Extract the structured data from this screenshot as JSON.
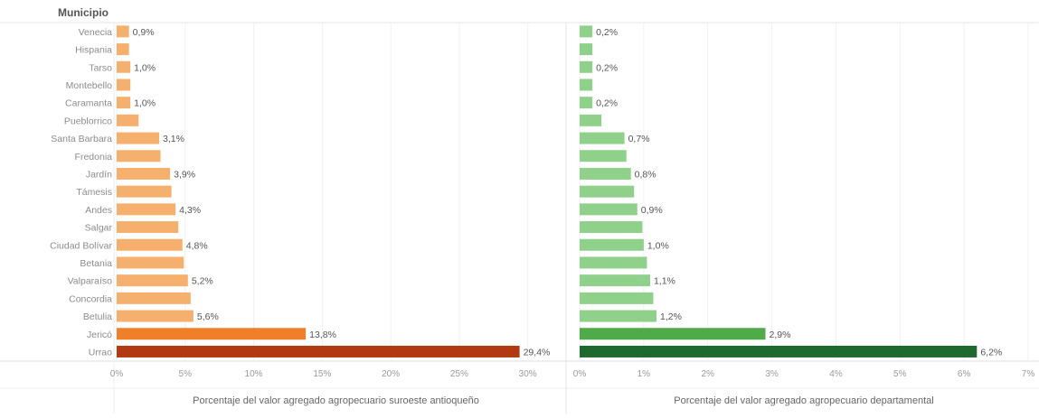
{
  "row_header": "Municipio",
  "chart_data": [
    {
      "type": "bar",
      "orientation": "horizontal",
      "xlabel": "Porcentaje del valor agregado agropecuario suroeste antioqueño",
      "xlim": [
        0,
        32
      ],
      "xticks": [
        "0%",
        "5%",
        "10%",
        "15%",
        "20%",
        "25%",
        "30%"
      ],
      "xtick_values": [
        0,
        5,
        10,
        15,
        20,
        25,
        30
      ],
      "categories": [
        "Venecia",
        "Hispania",
        "Tarso",
        "Montebello",
        "Caramanta",
        "Pueblorrico",
        "Santa Barbara",
        "Fredonia",
        "Jardín",
        "Támesis",
        "Andes",
        "Salgar",
        "Ciudad Bolívar",
        "Betania",
        "Valparaíso",
        "Concordia",
        "Betulia",
        "Jericó",
        "Urrao"
      ],
      "values": [
        0.9,
        0.9,
        1.0,
        1.0,
        1.0,
        1.6,
        3.1,
        3.2,
        3.9,
        4.0,
        4.3,
        4.5,
        4.8,
        4.9,
        5.2,
        5.4,
        5.6,
        13.8,
        29.4
      ],
      "data_labels": [
        "0,9%",
        "",
        "1,0%",
        "",
        "1,0%",
        "",
        "3,1%",
        "",
        "3,9%",
        "",
        "4,3%",
        "",
        "4,8%",
        "",
        "5,2%",
        "",
        "5,6%",
        "13,8%",
        "29,4%"
      ],
      "colors": {
        "base": "#f5b06e",
        "highlight": "#f07f2a",
        "top": "#b23a13"
      }
    },
    {
      "type": "bar",
      "orientation": "horizontal",
      "xlabel": "Porcentaje del  valor agregado agropecuario departamental",
      "xlim": [
        0,
        7
      ],
      "xticks": [
        "0%",
        "1%",
        "2%",
        "3%",
        "4%",
        "5%",
        "6%",
        "7%"
      ],
      "xtick_values": [
        0,
        1,
        2,
        3,
        4,
        5,
        6,
        7
      ],
      "categories": [
        "Venecia",
        "Hispania",
        "Tarso",
        "Montebello",
        "Caramanta",
        "Pueblorrico",
        "Santa Barbara",
        "Fredonia",
        "Jardín",
        "Támesis",
        "Andes",
        "Salgar",
        "Ciudad Bolívar",
        "Betania",
        "Valparaíso",
        "Concordia",
        "Betulia",
        "Jericó",
        "Urrao"
      ],
      "values": [
        0.2,
        0.2,
        0.2,
        0.2,
        0.2,
        0.34,
        0.7,
        0.73,
        0.8,
        0.85,
        0.9,
        0.98,
        1.0,
        1.05,
        1.1,
        1.15,
        1.2,
        2.9,
        6.2
      ],
      "data_labels": [
        "0,2%",
        "",
        "0,2%",
        "",
        "0,2%",
        "",
        "0,7%",
        "",
        "0,8%",
        "",
        "0,9%",
        "",
        "1,0%",
        "",
        "1,1%",
        "",
        "1,2%",
        "2,9%",
        "6,2%"
      ],
      "colors": {
        "base": "#8fd08a",
        "highlight": "#4faa4a",
        "top": "#1e6a2e"
      }
    }
  ]
}
